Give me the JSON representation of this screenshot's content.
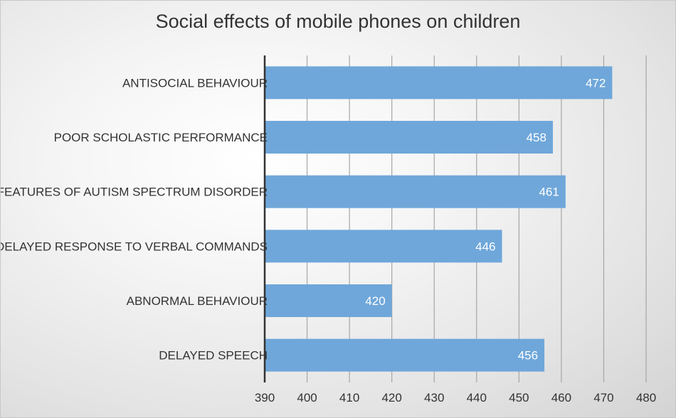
{
  "chart_data": {
    "type": "bar",
    "orientation": "horizontal",
    "title": "Social effects of mobile phones on children",
    "categories": [
      "ANTISOCIAL BEHAVIOUR",
      "POOR SCHOLASTIC PERFORMANCE",
      "FEATURES OF AUTISM SPECTRUM DISORDER",
      "DELAYED RESPONSE TO VERBAL COMMANDS",
      "ABNORMAL BEHAVIOUR",
      "DELAYED SPEECH"
    ],
    "values": [
      472,
      458,
      461,
      446,
      420,
      456
    ],
    "xlim": [
      390,
      480
    ],
    "xticks": [
      390,
      400,
      410,
      420,
      430,
      440,
      450,
      460,
      470,
      480
    ],
    "xlabel": "",
    "ylabel": "",
    "grid": true,
    "data_labels": true,
    "bar_color": "#6fa7da",
    "gridline_color": "#a6a6a6",
    "axis_color": "#333333"
  }
}
